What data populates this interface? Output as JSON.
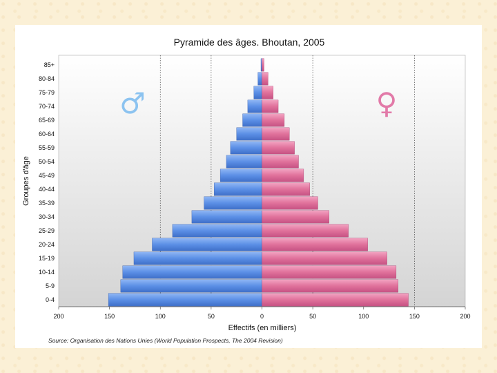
{
  "chart_data": {
    "type": "bar",
    "title": "Pyramide des âges. Bhoutan, 2005",
    "xlabel": "Effectifs (en milliers)",
    "ylabel": "Groupes d'âge",
    "source": "Source: Organisation des Nations Unies (World Population Prospects, The 2004 Revision)",
    "xlim": [
      -200,
      200
    ],
    "xticks": [
      -200,
      -150,
      -100,
      -50,
      0,
      50,
      100,
      150,
      200
    ],
    "xtick_labels": [
      "200",
      "150",
      "100",
      "50",
      "0",
      "50",
      "100",
      "150",
      "200"
    ],
    "gridlines_at": [
      -100,
      -50,
      50,
      150
    ],
    "categories": [
      "0-4",
      "5-9",
      "10-14",
      "15-19",
      "20-24",
      "25-29",
      "30-34",
      "35-39",
      "40-44",
      "45-49",
      "50-54",
      "55-59",
      "60-64",
      "65-69",
      "70-74",
      "75-79",
      "80-84",
      "85+"
    ],
    "series": [
      {
        "symbol": "♂",
        "color": "#5b8fe6",
        "values": [
          151,
          139,
          137,
          126,
          108,
          88,
          69,
          57,
          47,
          41,
          35,
          31,
          25,
          19,
          14,
          8,
          4,
          1
        ]
      },
      {
        "symbol": "♀",
        "color": "#e0719b",
        "values": [
          144,
          134,
          132,
          123,
          104,
          85,
          66,
          55,
          47,
          41,
          36,
          32,
          27,
          22,
          16,
          11,
          6,
          2
        ]
      }
    ]
  }
}
